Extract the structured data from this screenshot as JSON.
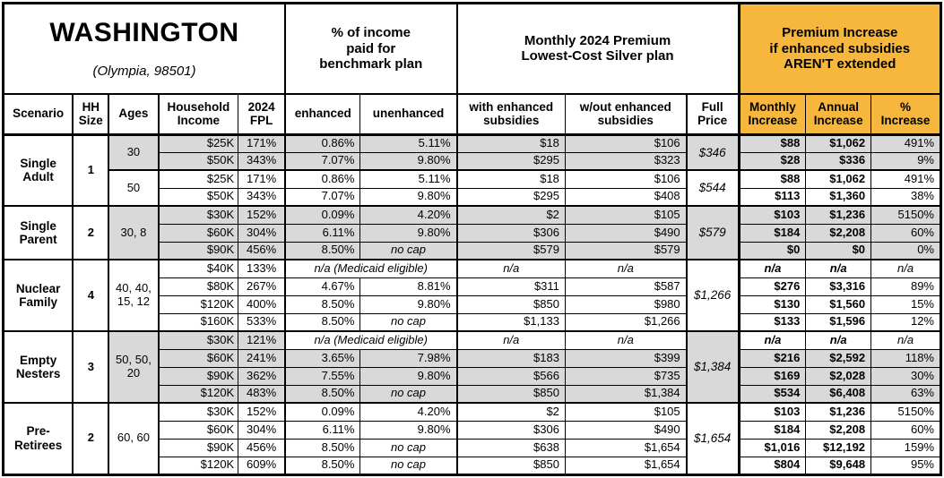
{
  "colors": {
    "increase_section_bg": "#f6b73c",
    "shaded_row_bg": "#d9d9d9",
    "border": "#000000"
  },
  "table": {
    "title": "WASHINGTON",
    "subtitle": "(Olympia, 98501)",
    "group_headers": {
      "benchmark": "% of income\npaid for\nbenchmark plan",
      "premium": "Monthly 2024 Premium\nLowest-Cost Silver plan",
      "increase": "Premium Increase\nif enhanced subsidies\nAREN'T extended"
    },
    "headers": {
      "scenario": "Scenario",
      "hh_size": "HH\nSize",
      "ages": "Ages",
      "income": "Household\nIncome",
      "fpl": "2024\nFPL",
      "enhanced": "enhanced",
      "unenhanced": "unenhanced",
      "with_sub": "with enhanced\nsubsidies",
      "wout_sub": "w/out enhanced\nsubsidies",
      "full_price": "Full\nPrice",
      "monthly": "Monthly\nIncrease",
      "annual": "Annual\nIncrease",
      "pct": "%\nIncrease"
    },
    "groups": [
      {
        "scenario": "Single\nAdult",
        "hh_size": "1",
        "age_blocks": [
          {
            "ages": "30",
            "span": 2,
            "shaded": true
          },
          {
            "ages": "50",
            "span": 2,
            "shaded": false
          }
        ],
        "price_blocks": [
          {
            "price": "$346",
            "span": 2,
            "shaded": true
          },
          {
            "price": "$544",
            "span": 2,
            "shaded": false
          }
        ],
        "rows": [
          {
            "shaded": true,
            "income": "$25K",
            "fpl": "171%",
            "enhanced": "0.86%",
            "unenhanced": "5.11%",
            "with_sub": "$18",
            "wout_sub": "$106",
            "monthly": "$88",
            "annual": "$1,062",
            "pct": "491%"
          },
          {
            "shaded": true,
            "income": "$50K",
            "fpl": "343%",
            "enhanced": "7.07%",
            "unenhanced": "9.80%",
            "with_sub": "$295",
            "wout_sub": "$323",
            "monthly": "$28",
            "annual": "$336",
            "pct": "9%"
          },
          {
            "shaded": false,
            "income": "$25K",
            "fpl": "171%",
            "enhanced": "0.86%",
            "unenhanced": "5.11%",
            "with_sub": "$18",
            "wout_sub": "$106",
            "monthly": "$88",
            "annual": "$1,062",
            "pct": "491%"
          },
          {
            "shaded": false,
            "income": "$50K",
            "fpl": "343%",
            "enhanced": "7.07%",
            "unenhanced": "9.80%",
            "with_sub": "$295",
            "wout_sub": "$408",
            "monthly": "$113",
            "annual": "$1,360",
            "pct": "38%"
          }
        ]
      },
      {
        "scenario": "Single\nParent",
        "hh_size": "2",
        "age_blocks": [
          {
            "ages": "30, 8",
            "span": 3,
            "shaded": true
          }
        ],
        "price_blocks": [
          {
            "price": "$579",
            "span": 3,
            "shaded": true
          }
        ],
        "rows": [
          {
            "shaded": true,
            "income": "$30K",
            "fpl": "152%",
            "enhanced": "0.09%",
            "unenhanced": "4.20%",
            "with_sub": "$2",
            "wout_sub": "$105",
            "monthly": "$103",
            "annual": "$1,236",
            "pct": "5150%"
          },
          {
            "shaded": true,
            "income": "$60K",
            "fpl": "304%",
            "enhanced": "6.11%",
            "unenhanced": "9.80%",
            "with_sub": "$306",
            "wout_sub": "$490",
            "monthly": "$184",
            "annual": "$2,208",
            "pct": "60%"
          },
          {
            "shaded": true,
            "income": "$90K",
            "fpl": "456%",
            "enhanced": "8.50%",
            "unenhanced": "no cap",
            "with_sub": "$579",
            "wout_sub": "$579",
            "monthly": "$0",
            "annual": "$0",
            "pct": "0%"
          }
        ]
      },
      {
        "scenario": "Nuclear\nFamily",
        "hh_size": "4",
        "age_blocks": [
          {
            "ages": "40, 40,\n15, 12",
            "span": 4,
            "shaded": false
          }
        ],
        "price_blocks": [
          {
            "price": "$1,266",
            "span": 4,
            "shaded": false
          }
        ],
        "rows": [
          {
            "shaded": false,
            "income": "$40K",
            "fpl": "133%",
            "medicaid": "n/a (Medicaid eligible)",
            "with_sub": "n/a",
            "wout_sub": "n/a",
            "monthly": "n/a",
            "annual": "n/a",
            "pct": "n/a"
          },
          {
            "shaded": false,
            "income": "$80K",
            "fpl": "267%",
            "enhanced": "4.67%",
            "unenhanced": "8.81%",
            "with_sub": "$311",
            "wout_sub": "$587",
            "monthly": "$276",
            "annual": "$3,316",
            "pct": "89%"
          },
          {
            "shaded": false,
            "income": "$120K",
            "fpl": "400%",
            "enhanced": "8.50%",
            "unenhanced": "9.80%",
            "with_sub": "$850",
            "wout_sub": "$980",
            "monthly": "$130",
            "annual": "$1,560",
            "pct": "15%"
          },
          {
            "shaded": false,
            "income": "$160K",
            "fpl": "533%",
            "enhanced": "8.50%",
            "unenhanced": "no cap",
            "with_sub": "$1,133",
            "wout_sub": "$1,266",
            "monthly": "$133",
            "annual": "$1,596",
            "pct": "12%"
          }
        ]
      },
      {
        "scenario": "Empty\nNesters",
        "hh_size": "3",
        "age_blocks": [
          {
            "ages": "50, 50,\n20",
            "span": 4,
            "shaded": true
          }
        ],
        "price_blocks": [
          {
            "price": "$1,384",
            "span": 4,
            "shaded": true
          }
        ],
        "rows": [
          {
            "shaded": true,
            "income": "$30K",
            "fpl": "121%",
            "medicaid": "n/a (Medicaid eligible)",
            "with_sub": "n/a",
            "wout_sub": "n/a",
            "monthly": "n/a",
            "annual": "n/a",
            "pct": "n/a"
          },
          {
            "shaded": true,
            "income": "$60K",
            "fpl": "241%",
            "enhanced": "3.65%",
            "unenhanced": "7.98%",
            "with_sub": "$183",
            "wout_sub": "$399",
            "monthly": "$216",
            "annual": "$2,592",
            "pct": "118%"
          },
          {
            "shaded": true,
            "income": "$90K",
            "fpl": "362%",
            "enhanced": "7.55%",
            "unenhanced": "9.80%",
            "with_sub": "$566",
            "wout_sub": "$735",
            "monthly": "$169",
            "annual": "$2,028",
            "pct": "30%"
          },
          {
            "shaded": true,
            "income": "$120K",
            "fpl": "483%",
            "enhanced": "8.50%",
            "unenhanced": "no cap",
            "with_sub": "$850",
            "wout_sub": "$1,384",
            "monthly": "$534",
            "annual": "$6,408",
            "pct": "63%"
          }
        ]
      },
      {
        "scenario": "Pre-\nRetirees",
        "hh_size": "2",
        "age_blocks": [
          {
            "ages": "60, 60",
            "span": 4,
            "shaded": false
          }
        ],
        "price_blocks": [
          {
            "price": "$1,654",
            "span": 4,
            "shaded": false
          }
        ],
        "rows": [
          {
            "shaded": false,
            "income": "$30K",
            "fpl": "152%",
            "enhanced": "0.09%",
            "unenhanced": "4.20%",
            "with_sub": "$2",
            "wout_sub": "$105",
            "monthly": "$103",
            "annual": "$1,236",
            "pct": "5150%"
          },
          {
            "shaded": false,
            "income": "$60K",
            "fpl": "304%",
            "enhanced": "6.11%",
            "unenhanced": "9.80%",
            "with_sub": "$306",
            "wout_sub": "$490",
            "monthly": "$184",
            "annual": "$2,208",
            "pct": "60%"
          },
          {
            "shaded": false,
            "income": "$90K",
            "fpl": "456%",
            "enhanced": "8.50%",
            "unenhanced": "no cap",
            "with_sub": "$638",
            "wout_sub": "$1,654",
            "monthly": "$1,016",
            "annual": "$12,192",
            "pct": "159%"
          },
          {
            "shaded": false,
            "income": "$120K",
            "fpl": "609%",
            "enhanced": "8.50%",
            "unenhanced": "no cap",
            "with_sub": "$850",
            "wout_sub": "$1,654",
            "monthly": "$804",
            "annual": "$9,648",
            "pct": "95%"
          }
        ]
      }
    ]
  }
}
